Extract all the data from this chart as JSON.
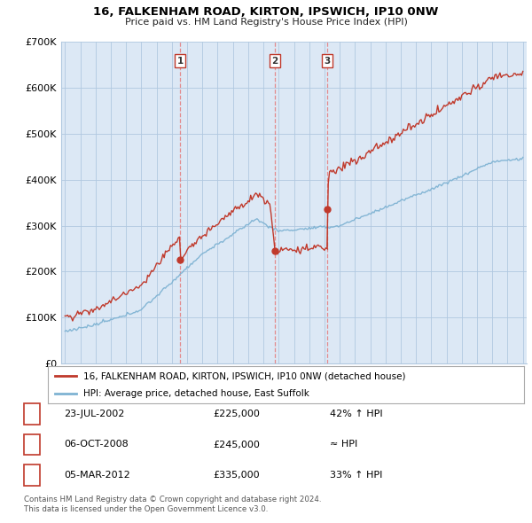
{
  "title": "16, FALKENHAM ROAD, KIRTON, IPSWICH, IP10 0NW",
  "subtitle": "Price paid vs. HM Land Registry's House Price Index (HPI)",
  "ylim": [
    0,
    700000
  ],
  "yticks": [
    0,
    100000,
    200000,
    300000,
    400000,
    500000,
    600000,
    700000
  ],
  "ytick_labels": [
    "£0",
    "£100K",
    "£200K",
    "£300K",
    "£400K",
    "£500K",
    "£600K",
    "£700K"
  ],
  "xlim_start": 1994.75,
  "xlim_end": 2025.25,
  "sale_dates": [
    2002.55,
    2008.76,
    2012.18
  ],
  "sale_prices": [
    225000,
    245000,
    335000
  ],
  "sale_labels": [
    "1",
    "2",
    "3"
  ],
  "legend_line1": "16, FALKENHAM ROAD, KIRTON, IPSWICH, IP10 0NW (detached house)",
  "legend_line2": "HPI: Average price, detached house, East Suffolk",
  "table_entries": [
    {
      "label": "1",
      "date": "23-JUL-2002",
      "price": "£225,000",
      "hpi": "42% ↑ HPI"
    },
    {
      "label": "2",
      "date": "06-OCT-2008",
      "price": "£245,000",
      "hpi": "≈ HPI"
    },
    {
      "label": "3",
      "date": "05-MAR-2012",
      "price": "£335,000",
      "hpi": "33% ↑ HPI"
    }
  ],
  "footnote1": "Contains HM Land Registry data © Crown copyright and database right 2024.",
  "footnote2": "This data is licensed under the Open Government Licence v3.0.",
  "red_color": "#c0392b",
  "blue_color": "#7fb3d3",
  "vline_color": "#e57373",
  "chart_bg": "#dce8f5",
  "background_color": "#ffffff",
  "grid_color": "#b0c8e0"
}
